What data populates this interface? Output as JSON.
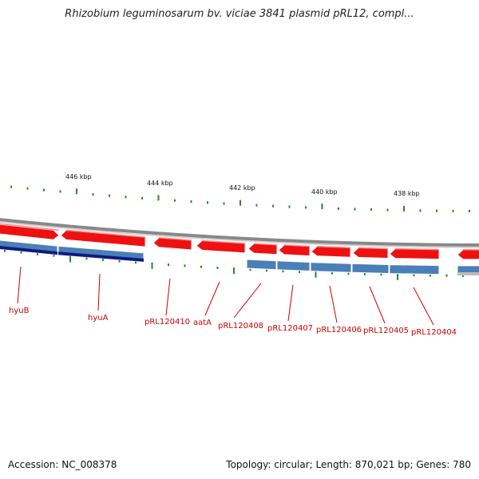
{
  "title": "Rhizobium leguminosarum bv. viciae 3841 plasmid pRL12, compl...",
  "footer": {
    "accession": "Accession: NC_008378",
    "summary": "Topology: circular; Length: 870,021 bp; Genes: 780"
  },
  "colors": {
    "forward_gene": "#ee1111",
    "reverse_gene": "#4a7fb8",
    "reverse_gene_dark": "#101a80",
    "backbone": "#888888",
    "tick": "#228822",
    "label": "#cc0000"
  },
  "chart_data": {
    "type": "genome-map",
    "scale_labels": [
      {
        "kbp": 446,
        "text": "446 kbp"
      },
      {
        "kbp": 444,
        "text": "444 kbp"
      },
      {
        "kbp": 442,
        "text": "442 kbp"
      },
      {
        "kbp": 440,
        "text": "440 kbp"
      },
      {
        "kbp": 438,
        "text": "438 kbp"
      }
    ],
    "genes": [
      {
        "label": "hyuB",
        "strand": "+"
      },
      {
        "label": "hyuA",
        "strand": "+"
      },
      {
        "label": "pRL120410",
        "strand": "+"
      },
      {
        "label": "aatA",
        "strand": "+"
      },
      {
        "label": "pRL120408",
        "strand": "+"
      },
      {
        "label": "pRL120407",
        "strand": "+"
      },
      {
        "label": "pRL120406",
        "strand": "+"
      },
      {
        "label": "pRL120405",
        "strand": "+"
      },
      {
        "label": "pRL120404",
        "strand": "+"
      }
    ]
  }
}
